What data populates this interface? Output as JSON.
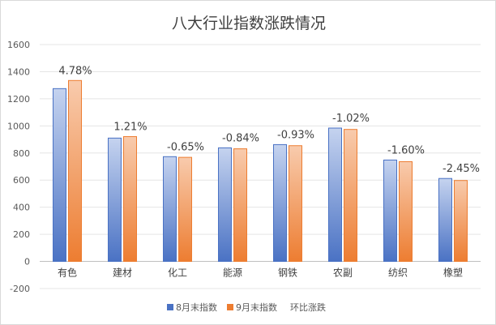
{
  "chart_data": {
    "type": "bar",
    "title": "八大行业指数涨跌情况",
    "categories": [
      "有色",
      "建材",
      "化工",
      "能源",
      "钢铁",
      "农副",
      "纺织",
      "橡塑"
    ],
    "series": [
      {
        "name": "8月末指数",
        "values": [
          1275,
          910,
          773,
          838,
          862,
          984,
          748,
          612
        ],
        "color": "#4a72c4"
      },
      {
        "name": "9月末指数",
        "values": [
          1335,
          921,
          768,
          831,
          854,
          974,
          736,
          597
        ],
        "color": "#ed7d31"
      }
    ],
    "change_series": {
      "name": "环比涨跌",
      "labels": [
        "4.78%",
        "1.21%",
        "-0.65%",
        "-0.84%",
        "-0.93%",
        "-1.02%",
        "-1.60%",
        "-2.45%"
      ]
    },
    "ylim": [
      -200,
      1600
    ],
    "yticks": [
      -200,
      0,
      200,
      400,
      600,
      800,
      1000,
      1200,
      1400,
      1600
    ],
    "grid": true,
    "legend_position": "bottom"
  }
}
